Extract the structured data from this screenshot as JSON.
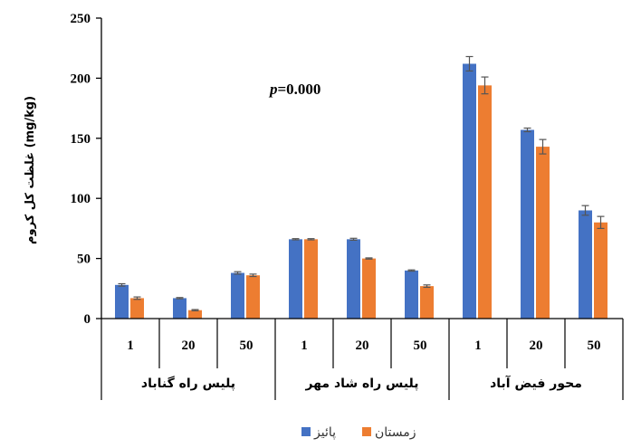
{
  "chart_data": {
    "type": "bar",
    "ylabel": "غلظت کل کروم (mg/kg)",
    "ylim": [
      0,
      250
    ],
    "yticks": [
      0,
      50,
      100,
      150,
      200,
      250
    ],
    "categories": [
      "1",
      "20",
      "50",
      "1",
      "20",
      "50",
      "1",
      "20",
      "50"
    ],
    "groups": [
      {
        "label": "پلیس راه گناباد",
        "categories": [
          "1",
          "20",
          "50"
        ]
      },
      {
        "label": "پلیس راه شاد مهر",
        "categories": [
          "1",
          "20",
          "50"
        ]
      },
      {
        "label": "محور  فیض آباد",
        "categories": [
          "1",
          "20",
          "50"
        ]
      }
    ],
    "series": [
      {
        "name": "پائیز",
        "color": "#4472C4",
        "values": [
          28,
          17,
          38,
          66,
          66,
          40,
          212,
          157,
          90
        ],
        "errors": [
          1,
          0.5,
          1,
          0.5,
          0.8,
          0.5,
          6,
          1.5,
          4
        ]
      },
      {
        "name": "زمستان",
        "color": "#ED7D31",
        "values": [
          17,
          7,
          36,
          66,
          50,
          27,
          194,
          143,
          80
        ],
        "errors": [
          1,
          0.5,
          1,
          0.5,
          0.5,
          1,
          7,
          6,
          5
        ]
      }
    ],
    "annotation": {
      "prefix": "p",
      "rest": "=0.000"
    },
    "legend": "bottom",
    "grid": false
  }
}
